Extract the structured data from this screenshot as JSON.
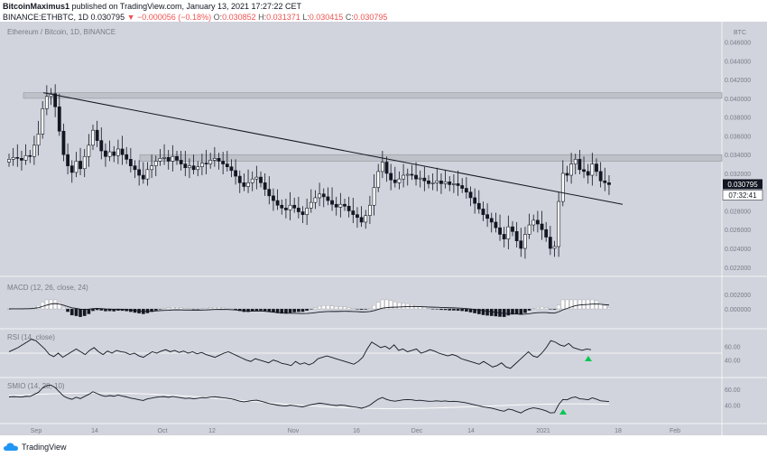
{
  "header": {
    "author": "BitcoinMaximus1",
    "published_text": "published on TradingView.com, January 13, 2021 17:27:22 CET",
    "symbol": "BINANCE:ETHBTC, 1D",
    "price": "0.030795",
    "change": "▼ −0.000056 (−0.18%)",
    "o_label": "O:",
    "o_value": "0.030852",
    "h_label": "H:",
    "h_value": "0.031371",
    "l_label": "L:",
    "l_value": "0.030415",
    "c_label": "C:",
    "c_value": "0.030795"
  },
  "chart_data": {
    "type": "candlestick",
    "title": "Ethereum / Bitcoin, 1D, BINANCE",
    "currency_label": "BTC",
    "x_tick_labels": [
      "Sep",
      "14",
      "Oct",
      "12",
      "Nov",
      "16",
      "Dec",
      "14",
      "2021",
      "18",
      "Feb"
    ],
    "y_ticks": [
      "0.046000",
      "0.044000",
      "0.042000",
      "0.040000",
      "0.038000",
      "0.036000",
      "0.034000",
      "0.032000",
      "0.030000",
      "0.028000",
      "0.026000",
      "0.024000",
      "0.022000"
    ],
    "ylim": [
      0.0214,
      0.0476
    ],
    "last_price_label": "0.030795",
    "countdown_label": "07:32:41",
    "resistance_zones": [
      {
        "from": 0.04,
        "to": 0.0406
      },
      {
        "from": 0.0333,
        "to": 0.034
      }
    ],
    "trendline": {
      "start": 0.0406,
      "end": 0.0287
    },
    "closes": [
      0.0335,
      0.0337,
      0.0336,
      0.0334,
      0.0339,
      0.0338,
      0.035,
      0.0362,
      0.0389,
      0.0402,
      0.0405,
      0.0391,
      0.0365,
      0.034,
      0.0328,
      0.0321,
      0.0333,
      0.0325,
      0.0338,
      0.035,
      0.0366,
      0.0355,
      0.0344,
      0.0338,
      0.0343,
      0.0339,
      0.0346,
      0.034,
      0.0335,
      0.0328,
      0.0324,
      0.0318,
      0.0314,
      0.0324,
      0.0328,
      0.0333,
      0.0336,
      0.0337,
      0.0333,
      0.0338,
      0.0334,
      0.033,
      0.0326,
      0.0328,
      0.0324,
      0.0327,
      0.0331,
      0.033,
      0.0334,
      0.0336,
      0.0333,
      0.033,
      0.0327,
      0.0323,
      0.0317,
      0.031,
      0.0306,
      0.031,
      0.0314,
      0.0316,
      0.031,
      0.0303,
      0.0296,
      0.0291,
      0.0286,
      0.0283,
      0.0281,
      0.0286,
      0.0283,
      0.0279,
      0.0276,
      0.0283,
      0.0289,
      0.0294,
      0.0298,
      0.0295,
      0.0291,
      0.0287,
      0.0284,
      0.0287,
      0.0285,
      0.028,
      0.0276,
      0.0273,
      0.0268,
      0.0275,
      0.0286,
      0.0305,
      0.0322,
      0.0332,
      0.032,
      0.0313,
      0.031,
      0.0314,
      0.0318,
      0.0319,
      0.0318,
      0.0314,
      0.0315,
      0.0312,
      0.0309,
      0.031,
      0.0312,
      0.0309,
      0.0311,
      0.0308,
      0.0309,
      0.0307,
      0.0304,
      0.03,
      0.0294,
      0.0288,
      0.0282,
      0.0276,
      0.0272,
      0.0268,
      0.0262,
      0.0255,
      0.025,
      0.0263,
      0.0258,
      0.0248,
      0.024,
      0.0255,
      0.0265,
      0.027,
      0.0266,
      0.026,
      0.0252,
      0.024,
      0.0242,
      0.029,
      0.032,
      0.0318,
      0.033,
      0.0335,
      0.0324,
      0.0322,
      0.0318,
      0.033,
      0.0322,
      0.0312,
      0.031,
      0.0308
    ],
    "macd": {
      "label": "MACD (12, 26, close, 24)",
      "y_ticks": [
        "0.002000",
        "0.000000"
      ]
    },
    "rsi": {
      "label": "RSI (14, close)",
      "y_ticks": [
        "60.00",
        "40.00"
      ],
      "values": [
        52,
        55,
        58,
        62,
        66,
        70,
        68,
        62,
        56,
        48,
        45,
        50,
        44,
        48,
        52,
        56,
        52,
        48,
        54,
        58,
        52,
        48,
        53,
        50,
        54,
        52,
        51,
        48,
        50,
        46,
        44,
        48,
        52,
        50,
        53,
        55,
        52,
        54,
        51,
        53,
        50,
        52,
        49,
        51,
        48,
        46,
        44,
        47,
        50,
        52,
        49,
        46,
        43,
        40,
        38,
        42,
        40,
        38,
        36,
        40,
        38,
        35,
        34,
        32,
        38,
        34,
        36,
        33,
        36,
        42,
        44,
        46,
        44,
        42,
        40,
        38,
        36,
        34,
        38,
        44,
        56,
        66,
        62,
        58,
        60,
        56,
        62,
        54,
        56,
        52,
        54,
        56,
        50,
        52,
        55,
        53,
        50,
        48,
        46,
        48,
        46,
        42,
        40,
        38,
        36,
        34,
        38,
        34,
        30,
        32,
        36,
        30,
        28,
        34,
        40,
        46,
        52,
        46,
        44,
        50,
        58,
        68,
        66,
        62,
        60,
        64,
        58,
        56,
        54,
        56,
        55
      ]
    },
    "second_oscillator": {
      "label": "SMIO (14, 28, 10)",
      "y_ticks": [
        "60.00",
        "40.00"
      ]
    }
  },
  "footer": {
    "brand": "TradingView"
  }
}
